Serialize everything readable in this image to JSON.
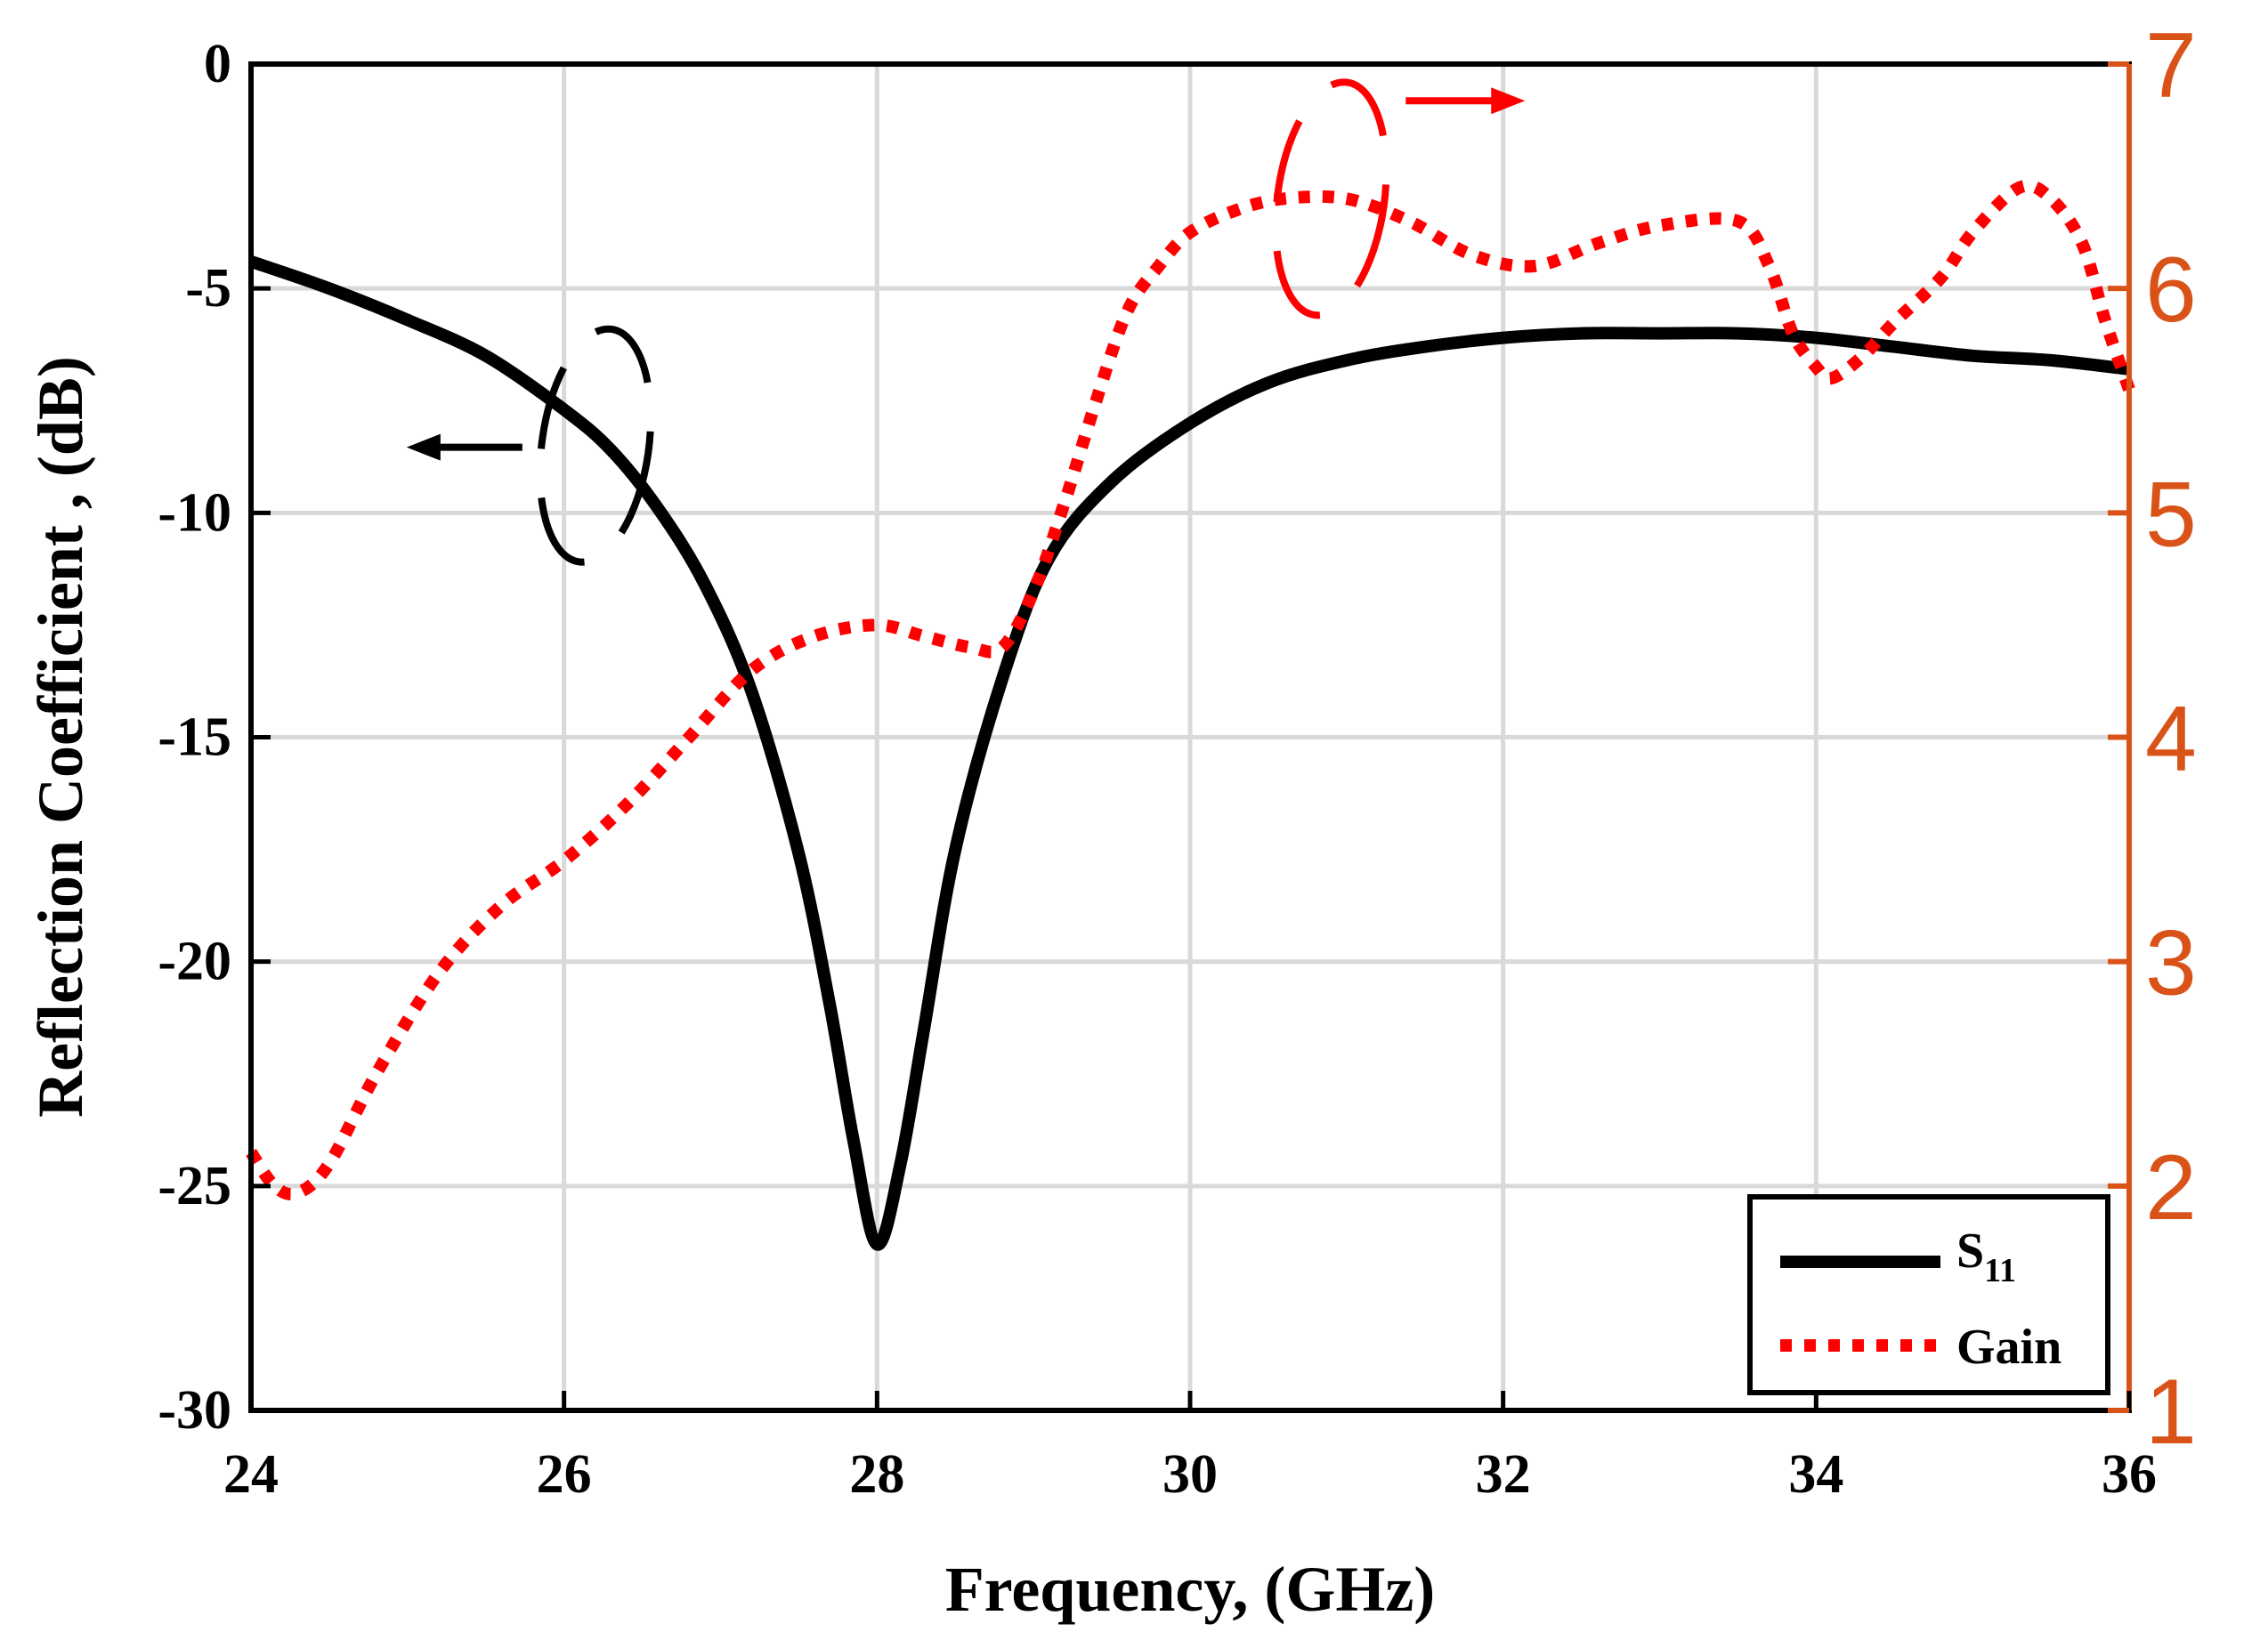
{
  "chart_data": {
    "type": "line",
    "title": "",
    "xlabel": "Frequency, (GHz)",
    "ylabel_left": "Reflection Coefficient , (dB)",
    "ylabel_right": "",
    "xlim": [
      24,
      36
    ],
    "ylim_left": [
      -30,
      0
    ],
    "ylim_right": [
      1,
      7
    ],
    "grid": true,
    "legend_position": "bottom-right",
    "x_ticks": [
      "24",
      "26",
      "28",
      "30",
      "32",
      "34",
      "36"
    ],
    "y_left_ticks": [
      "0",
      "-5",
      "-10",
      "-15",
      "-20",
      "-25",
      "-30"
    ],
    "y_right_ticks": [
      "7",
      "6",
      "5",
      "4",
      "3",
      "2",
      "1"
    ],
    "colors": {
      "s11": "#000000",
      "gain": "#ff0000",
      "right_axis": "#d95319",
      "grid": "#d9d9d9"
    },
    "series": [
      {
        "name": "S",
        "subscript": "11",
        "axis": "left",
        "style": "solid",
        "x": [
          24,
          24.5,
          25,
          25.5,
          26,
          26.3,
          26.6,
          26.9,
          27.2,
          27.5,
          27.7,
          27.85,
          28,
          28.15,
          28.3,
          28.5,
          28.8,
          29.1,
          29.5,
          30,
          30.5,
          31,
          31.5,
          32,
          32.5,
          33,
          33.5,
          34,
          34.5,
          35,
          35.5,
          36
        ],
        "y": [
          -4.4,
          -5.0,
          -5.7,
          -6.5,
          -7.7,
          -8.6,
          -9.9,
          -11.6,
          -14.0,
          -17.6,
          -21.0,
          -24.0,
          -26.3,
          -24.5,
          -21.5,
          -17.5,
          -13.7,
          -11.0,
          -9.3,
          -8.0,
          -7.1,
          -6.6,
          -6.3,
          -6.1,
          -6.0,
          -6.0,
          -6.0,
          -6.1,
          -6.3,
          -6.5,
          -6.6,
          -6.8
        ]
      },
      {
        "name": "Gain",
        "axis": "right",
        "style": "dotted",
        "x": [
          24,
          24.15,
          24.3,
          24.5,
          24.8,
          25.2,
          25.6,
          26,
          26.4,
          26.8,
          27.2,
          27.6,
          28,
          28.3,
          28.6,
          28.8,
          29,
          29.2,
          29.4,
          29.6,
          29.8,
          30,
          30.3,
          30.6,
          31,
          31.4,
          31.8,
          32.2,
          32.6,
          33,
          33.5,
          33.7,
          33.85,
          34,
          34.1,
          34.3,
          34.5,
          34.8,
          35,
          35.3,
          35.5,
          35.7,
          35.85,
          36
        ],
        "y": [
          2.15,
          2.0,
          1.97,
          2.1,
          2.5,
          2.95,
          3.25,
          3.45,
          3.7,
          4.0,
          4.3,
          4.45,
          4.5,
          4.45,
          4.4,
          4.4,
          4.65,
          5.05,
          5.5,
          5.9,
          6.1,
          6.25,
          6.35,
          6.4,
          6.4,
          6.3,
          6.15,
          6.1,
          6.2,
          6.28,
          6.3,
          6.1,
          5.8,
          5.65,
          5.6,
          5.7,
          5.85,
          6.05,
          6.25,
          6.45,
          6.4,
          6.2,
          5.85,
          5.55
        ]
      }
    ],
    "annotations": [
      {
        "type": "ellipse-arrow",
        "series": "S",
        "direction": "left",
        "x": 26.2,
        "y_left": -8.5
      },
      {
        "type": "ellipse-arrow",
        "series": "Gain",
        "direction": "right",
        "x": 30.9,
        "y_right": 6.4
      }
    ]
  }
}
